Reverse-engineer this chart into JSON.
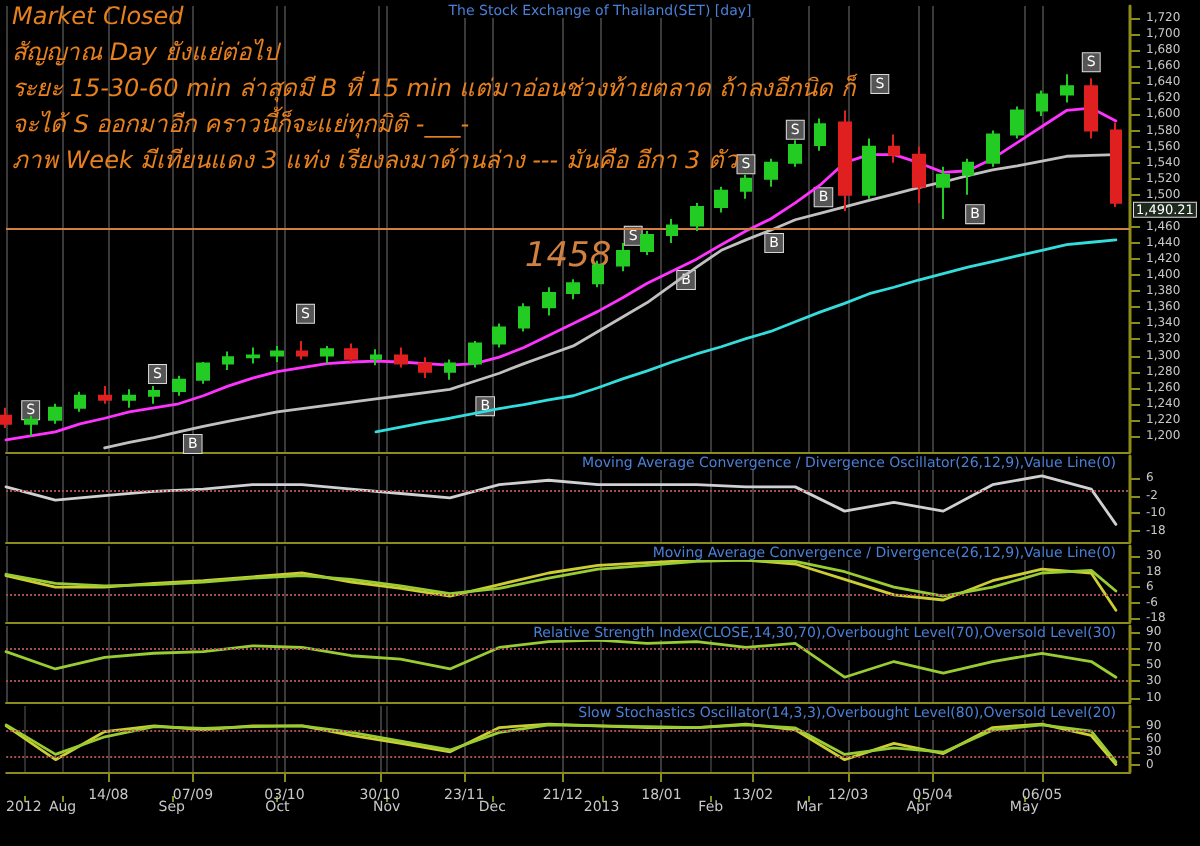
{
  "chart_data": [
    {
      "type": "candlestick",
      "title": "The Stock Exchange of Thailand(SET) [day]",
      "x": [
        "2012-07-16",
        "2012-07-23",
        "2012-07-30",
        "2012-08-06",
        "2012-08-13",
        "2012-08-20",
        "2012-08-27",
        "2012-09-03",
        "2012-09-10",
        "2012-09-17",
        "2012-09-24",
        "2012-10-01",
        "2012-10-08",
        "2012-10-15",
        "2012-10-22",
        "2012-10-29",
        "2012-11-05",
        "2012-11-12",
        "2012-11-19",
        "2012-11-26",
        "2012-12-03",
        "2012-12-10",
        "2012-12-17",
        "2012-12-24",
        "2012-12-31",
        "2013-01-07",
        "2013-01-14",
        "2013-01-21",
        "2013-01-28",
        "2013-02-04",
        "2013-02-11",
        "2013-02-18",
        "2013-02-25",
        "2013-03-04",
        "2013-03-11",
        "2013-03-18",
        "2013-03-25",
        "2013-04-01",
        "2013-04-08",
        "2013-04-15",
        "2013-04-22",
        "2013-04-29",
        "2013-05-06",
        "2013-05-13",
        "2013-05-20",
        "2013-05-27"
      ],
      "ohlc": [
        [
          1225,
          1235,
          1210,
          1215
        ],
        [
          1215,
          1225,
          1200,
          1220
        ],
        [
          1220,
          1240,
          1215,
          1235
        ],
        [
          1235,
          1255,
          1230,
          1250
        ],
        [
          1250,
          1262,
          1240,
          1245
        ],
        [
          1245,
          1258,
          1235,
          1250
        ],
        [
          1250,
          1262,
          1240,
          1256
        ],
        [
          1256,
          1275,
          1250,
          1270
        ],
        [
          1270,
          1292,
          1265,
          1290
        ],
        [
          1290,
          1305,
          1282,
          1298
        ],
        [
          1298,
          1310,
          1290,
          1300
        ],
        [
          1300,
          1312,
          1292,
          1305
        ],
        [
          1305,
          1318,
          1295,
          1300
        ],
        [
          1300,
          1312,
          1290,
          1308
        ],
        [
          1308,
          1315,
          1292,
          1296
        ],
        [
          1296,
          1308,
          1288,
          1300
        ],
        [
          1300,
          1310,
          1285,
          1290
        ],
        [
          1290,
          1298,
          1272,
          1280
        ],
        [
          1280,
          1295,
          1270,
          1290
        ],
        [
          1290,
          1318,
          1285,
          1315
        ],
        [
          1315,
          1340,
          1310,
          1335
        ],
        [
          1335,
          1365,
          1330,
          1360
        ],
        [
          1360,
          1385,
          1350,
          1378
        ],
        [
          1378,
          1395,
          1370,
          1390
        ],
        [
          1390,
          1418,
          1385,
          1412
        ],
        [
          1412,
          1440,
          1405,
          1430
        ],
        [
          1430,
          1455,
          1425,
          1450
        ],
        [
          1450,
          1470,
          1440,
          1462
        ],
        [
          1462,
          1490,
          1455,
          1485
        ],
        [
          1485,
          1510,
          1478,
          1505
        ],
        [
          1505,
          1525,
          1495,
          1520
        ],
        [
          1520,
          1545,
          1510,
          1540
        ],
        [
          1540,
          1568,
          1535,
          1562
        ],
        [
          1562,
          1595,
          1555,
          1588
        ],
        [
          1590,
          1605,
          1480,
          1500
        ],
        [
          1500,
          1570,
          1495,
          1560
        ],
        [
          1560,
          1575,
          1540,
          1550
        ],
        [
          1550,
          1560,
          1490,
          1510
        ],
        [
          1510,
          1535,
          1470,
          1525
        ],
        [
          1525,
          1545,
          1500,
          1540
        ],
        [
          1540,
          1580,
          1535,
          1575
        ],
        [
          1575,
          1610,
          1570,
          1605
        ],
        [
          1605,
          1630,
          1598,
          1625
        ],
        [
          1625,
          1650,
          1615,
          1635
        ],
        [
          1635,
          1645,
          1570,
          1580
        ],
        [
          1580,
          1590,
          1485,
          1490.21
        ]
      ],
      "series": [
        {
          "type": "line",
          "color": "#ff33ff",
          "values": [
            1195,
            1200,
            1205,
            1215,
            1222,
            1230,
            1235,
            1240,
            1250,
            1262,
            1272,
            1280,
            1285,
            1290,
            1292,
            1293,
            1292,
            1290,
            1288,
            1290,
            1298,
            1310,
            1325,
            1340,
            1355,
            1372,
            1390,
            1405,
            1420,
            1438,
            1455,
            1470,
            1490,
            1512,
            1540,
            1550,
            1550,
            1540,
            1528,
            1530,
            1545,
            1565,
            1585,
            1605,
            1608,
            1592
          ]
        },
        {
          "type": "line",
          "color": "#c0c0c0",
          "values": [
            null,
            null,
            null,
            null,
            1185,
            1192,
            1198,
            1205,
            1212,
            1218,
            1224,
            1230,
            1234,
            1238,
            1242,
            1246,
            1250,
            1254,
            1258,
            1268,
            1278,
            1290,
            1301,
            1312,
            1330,
            1348,
            1366,
            1388,
            1410,
            1431,
            1444,
            1456,
            1469,
            1477,
            1485,
            1493,
            1501,
            1509,
            1516,
            1524,
            1531,
            1536,
            1542,
            1548,
            1549,
            1550
          ]
        },
        {
          "type": "line",
          "color": "#33dddd",
          "values": [
            null,
            null,
            null,
            null,
            null,
            null,
            null,
            null,
            null,
            null,
            null,
            null,
            null,
            null,
            null,
            1205,
            1211,
            1217,
            1222,
            1228,
            1234,
            1239,
            1245,
            1250,
            1260,
            1271,
            1281,
            1292,
            1302,
            1311,
            1321,
            1330,
            1342,
            1354,
            1365,
            1377,
            1385,
            1394,
            1402,
            1410,
            1417,
            1424,
            1431,
            1438,
            1441,
            1444
          ]
        }
      ],
      "xlim": [
        "2012-07-16",
        "2013-05-31"
      ],
      "xticks": [
        {
          "value": "2012-07-16",
          "label": null
        },
        {
          "value": "2012-08-01",
          "label": null
        },
        {
          "value": "2012-08-14",
          "label": null
        },
        {
          "value": "2012-09-01",
          "label": null
        },
        {
          "value": "2012-09-07",
          "label": null
        },
        {
          "value": "2012-10-01",
          "label": null
        },
        {
          "value": "2012-10-03",
          "label": null
        },
        {
          "value": "2012-10-30",
          "label": null
        },
        {
          "value": "2012-11-01",
          "label": null
        },
        {
          "value": "2012-11-23",
          "label": null
        },
        {
          "value": "2012-12-01",
          "label": null
        },
        {
          "value": "2012-12-21",
          "label": null
        },
        {
          "value": "2013-01-01",
          "label": null
        },
        {
          "value": "2013-01-18",
          "label": null
        },
        {
          "value": "2013-02-01",
          "label": null
        },
        {
          "value": "2013-02-13",
          "label": null
        },
        {
          "value": "2013-03-01",
          "label": null
        },
        {
          "value": "2013-03-12",
          "label": null
        },
        {
          "value": "2013-04-01",
          "label": null
        },
        {
          "value": "2013-04-05",
          "label": null
        },
        {
          "value": "2013-05-01",
          "label": null
        },
        {
          "value": "2013-05-06",
          "label": null
        }
      ],
      "ylim": [
        1180,
        1735
      ],
      "yticks": [
        {
          "value": 1200,
          "label": "1,200"
        },
        {
          "value": 1220,
          "label": "1,220"
        },
        {
          "value": 1240,
          "label": "1,240"
        },
        {
          "value": 1260,
          "label": "1,260"
        },
        {
          "value": 1280,
          "label": "1,280"
        },
        {
          "value": 1300,
          "label": "1,300"
        },
        {
          "value": 1320,
          "label": "1,320"
        },
        {
          "value": 1340,
          "label": "1,340"
        },
        {
          "value": 1360,
          "label": "1,360"
        },
        {
          "value": 1380,
          "label": "1,380"
        },
        {
          "value": 1400,
          "label": "1,400"
        },
        {
          "value": 1420,
          "label": "1,420"
        },
        {
          "value": 1440,
          "label": "1,440"
        },
        {
          "value": 1460,
          "label": "1,460"
        },
        {
          "value": 1500,
          "label": "1,500"
        },
        {
          "value": 1520,
          "label": "1,520"
        },
        {
          "value": 1540,
          "label": "1,540"
        },
        {
          "value": 1560,
          "label": "1,560"
        },
        {
          "value": 1580,
          "label": "1,580"
        },
        {
          "value": 1600,
          "label": "1,600"
        },
        {
          "value": 1620,
          "label": "1,620"
        },
        {
          "value": 1640,
          "label": "1,640"
        },
        {
          "value": 1660,
          "label": "1,660"
        },
        {
          "value": 1680,
          "label": "1,680"
        },
        {
          "value": 1700,
          "label": "1,700"
        },
        {
          "value": 1720,
          "label": "1,720"
        }
      ],
      "grid": "x",
      "tick_labels": "y",
      "ref_lines": [
        {
          "axis": "y",
          "value": 1458,
          "label": "1458",
          "color": "#d08040",
          "line_style": "solid"
        }
      ],
      "annotations": [
        "Market Closed",
        "สัญญาณ Day ยังแย่ต่อไป",
        "ระยะ 15-30-60 min ล่าสุดมี B ที่ 15 min แต่มาอ่อนช่วงท้ายตลาด ถ้าลงอีกนิด ก็",
        "จะได้ S ออกมาอีก คราวนี้ก็จะแย่ทุกมิติ -___-",
        "ภาพ Week มีเทียนแดง 3 แท่ง เรียงลงมาด้านล่าง --- มันคือ อีกา 3 ตัว",
        {
          "text": "S",
          "x": "2012-07-23",
          "y": 1232
        },
        {
          "text": "S",
          "x": "2012-08-28",
          "y": 1277
        },
        {
          "text": "S",
          "x": "2012-10-09",
          "y": 1352
        },
        {
          "text": "S",
          "x": "2013-01-10",
          "y": 1449
        },
        {
          "text": "S",
          "x": "2013-02-11",
          "y": 1538
        },
        {
          "text": "S",
          "x": "2013-02-25",
          "y": 1581
        },
        {
          "text": "S",
          "x": "2013-03-21",
          "y": 1638
        },
        {
          "text": "S",
          "x": "2013-05-20",
          "y": 1665
        },
        {
          "text": "B",
          "x": "2012-09-07",
          "y": 1190
        },
        {
          "text": "B",
          "x": "2012-11-29",
          "y": 1237
        },
        {
          "text": "B",
          "x": "2013-01-25",
          "y": 1394
        },
        {
          "text": "B",
          "x": "2013-02-19",
          "y": 1440
        },
        {
          "text": "B",
          "x": "2013-03-05",
          "y": 1497
        },
        {
          "text": "B",
          "x": "2013-04-17",
          "y": 1476
        },
        {
          "text": "1,490.21",
          "x": "2013-05-31",
          "y": 1490.21
        }
      ]
    },
    {
      "type": "line",
      "title": "Moving Average Convergence / Divergence Oscillator(26,12,9),Value Line(0)",
      "x": [
        "2012-07-16",
        "2012-07-30",
        "2012-08-13",
        "2012-08-27",
        "2012-09-10",
        "2012-09-24",
        "2012-10-08",
        "2012-10-22",
        "2012-11-05",
        "2012-11-19",
        "2012-12-03",
        "2012-12-17",
        "2012-12-31",
        "2013-01-14",
        "2013-01-28",
        "2013-02-11",
        "2013-02-25",
        "2013-03-11",
        "2013-03-25",
        "2013-04-08",
        "2013-04-22",
        "2013-05-06",
        "2013-05-20",
        "2013-05-27"
      ],
      "series": [
        {
          "color": "#d0d0d0",
          "values": [
            2,
            -4,
            -2,
            0,
            1,
            3,
            3,
            1,
            -1,
            -3,
            3,
            5,
            3,
            3,
            3,
            2,
            2,
            -9,
            -5,
            -9,
            3,
            7,
            1,
            -15
          ]
        }
      ],
      "xlim": [
        "2012-07-16",
        "2013-05-31"
      ],
      "xticks": [
        {
          "value": "2012-07-16",
          "label": null
        },
        {
          "value": "2012-08-01",
          "label": null
        },
        {
          "value": "2012-08-14",
          "label": null
        },
        {
          "value": "2012-09-01",
          "label": null
        },
        {
          "value": "2012-09-07",
          "label": null
        },
        {
          "value": "2012-10-01",
          "label": null
        },
        {
          "value": "2012-10-03",
          "label": null
        },
        {
          "value": "2012-10-30",
          "label": null
        },
        {
          "value": "2012-11-01",
          "label": null
        },
        {
          "value": "2012-11-23",
          "label": null
        },
        {
          "value": "2012-12-01",
          "label": null
        },
        {
          "value": "2012-12-21",
          "label": null
        },
        {
          "value": "2013-01-01",
          "label": null
        },
        {
          "value": "2013-01-18",
          "label": null
        },
        {
          "value": "2013-02-01",
          "label": null
        },
        {
          "value": "2013-02-13",
          "label": null
        },
        {
          "value": "2013-03-01",
          "label": null
        },
        {
          "value": "2013-03-12",
          "label": null
        },
        {
          "value": "2013-04-01",
          "label": null
        },
        {
          "value": "2013-04-05",
          "label": null
        },
        {
          "value": "2013-05-01",
          "label": null
        },
        {
          "value": "2013-05-06",
          "label": null
        }
      ],
      "ylim": [
        -23,
        16
      ],
      "yticks": [
        6,
        -2,
        -10,
        -18
      ],
      "grid": "x",
      "tick_labels": "y",
      "ref_lines": [
        {
          "axis": "y",
          "value": 0,
          "color": "#a05050",
          "line_style": "dotted"
        }
      ]
    },
    {
      "type": "line",
      "title": "Moving Average Convergence / Divergence(26,12,9),Value Line(0)",
      "x": [
        "2012-07-16",
        "2012-07-30",
        "2012-08-13",
        "2012-08-27",
        "2012-09-10",
        "2012-09-24",
        "2012-10-08",
        "2012-10-22",
        "2012-11-05",
        "2012-11-19",
        "2012-12-03",
        "2012-12-17",
        "2012-12-31",
        "2013-01-14",
        "2013-01-28",
        "2013-02-11",
        "2013-02-25",
        "2013-03-11",
        "2013-03-25",
        "2013-04-08",
        "2013-04-22",
        "2013-05-06",
        "2013-05-20",
        "2013-05-27"
      ],
      "series": [
        {
          "color": "#cccc33",
          "values": [
            15,
            6,
            6,
            9,
            11,
            14,
            17,
            10,
            5,
            -1,
            8,
            17,
            23,
            25,
            27,
            27,
            24,
            12,
            0,
            -4,
            11,
            20,
            17,
            -12
          ]
        },
        {
          "color": "#99cc33",
          "values": [
            16,
            9,
            7,
            8,
            10,
            13,
            15,
            12,
            7,
            1,
            5,
            13,
            20,
            23,
            26,
            27,
            26,
            18,
            6,
            -1,
            6,
            17,
            19,
            3
          ]
        }
      ],
      "xlim": [
        "2012-07-16",
        "2013-05-31"
      ],
      "xticks": [
        {
          "value": "2012-07-16",
          "label": null
        },
        {
          "value": "2012-08-01",
          "label": null
        },
        {
          "value": "2012-08-14",
          "label": null
        },
        {
          "value": "2012-09-01",
          "label": null
        },
        {
          "value": "2012-09-07",
          "label": null
        },
        {
          "value": "2012-10-01",
          "label": null
        },
        {
          "value": "2012-10-03",
          "label": null
        },
        {
          "value": "2012-10-30",
          "label": null
        },
        {
          "value": "2012-11-01",
          "label": null
        },
        {
          "value": "2012-11-23",
          "label": null
        },
        {
          "value": "2012-12-01",
          "label": null
        },
        {
          "value": "2012-12-21",
          "label": null
        },
        {
          "value": "2013-01-01",
          "label": null
        },
        {
          "value": "2013-01-18",
          "label": null
        },
        {
          "value": "2013-02-01",
          "label": null
        },
        {
          "value": "2013-02-13",
          "label": null
        },
        {
          "value": "2013-03-01",
          "label": null
        },
        {
          "value": "2013-03-12",
          "label": null
        },
        {
          "value": "2013-04-01",
          "label": null
        },
        {
          "value": "2013-04-05",
          "label": null
        },
        {
          "value": "2013-05-01",
          "label": null
        },
        {
          "value": "2013-05-06",
          "label": null
        }
      ],
      "ylim": [
        -21,
        38
      ],
      "yticks": [
        30,
        18,
        6,
        -6,
        -18
      ],
      "grid": "x",
      "tick_labels": "y",
      "ref_lines": [
        {
          "axis": "y",
          "value": 0,
          "color": "#a05050",
          "line_style": "dotted"
        }
      ]
    },
    {
      "type": "line",
      "title": "Relative Strength Index(CLOSE,14,30,70),Overbought Level(70),Oversold Level(30)",
      "x": [
        "2012-07-16",
        "2012-07-30",
        "2012-08-13",
        "2012-08-27",
        "2012-09-10",
        "2012-09-24",
        "2012-10-08",
        "2012-10-22",
        "2012-11-05",
        "2012-11-19",
        "2012-12-03",
        "2012-12-17",
        "2012-12-31",
        "2013-01-14",
        "2013-01-28",
        "2013-02-11",
        "2013-02-25",
        "2013-03-11",
        "2013-03-25",
        "2013-04-08",
        "2013-04-22",
        "2013-05-06",
        "2013-05-20",
        "2013-05-27"
      ],
      "series": [
        {
          "color": "#99cc33",
          "values": [
            66,
            45,
            59,
            64,
            66,
            73,
            71,
            61,
            57,
            45,
            71,
            78,
            80,
            76,
            78,
            71,
            76,
            35,
            54,
            40,
            54,
            64,
            54,
            35
          ]
        }
      ],
      "xlim": [
        "2012-07-16",
        "2013-05-31"
      ],
      "xticks": [
        {
          "value": "2012-07-16",
          "label": null
        },
        {
          "value": "2012-08-01",
          "label": null
        },
        {
          "value": "2012-08-14",
          "label": null
        },
        {
          "value": "2012-09-01",
          "label": null
        },
        {
          "value": "2012-09-07",
          "label": null
        },
        {
          "value": "2012-10-01",
          "label": null
        },
        {
          "value": "2012-10-03",
          "label": null
        },
        {
          "value": "2012-10-30",
          "label": null
        },
        {
          "value": "2012-11-01",
          "label": null
        },
        {
          "value": "2012-11-23",
          "label": null
        },
        {
          "value": "2012-12-01",
          "label": null
        },
        {
          "value": "2012-12-21",
          "label": null
        },
        {
          "value": "2013-01-01",
          "label": null
        },
        {
          "value": "2013-01-18",
          "label": null
        },
        {
          "value": "2013-02-01",
          "label": null
        },
        {
          "value": "2013-02-13",
          "label": null
        },
        {
          "value": "2013-03-01",
          "label": null
        },
        {
          "value": "2013-03-12",
          "label": null
        },
        {
          "value": "2013-04-01",
          "label": null
        },
        {
          "value": "2013-04-05",
          "label": null
        },
        {
          "value": "2013-05-01",
          "label": null
        },
        {
          "value": "2013-05-06",
          "label": null
        }
      ],
      "ylim": [
        5,
        97
      ],
      "yticks": [
        90,
        70,
        50,
        30,
        10
      ],
      "grid": "x",
      "tick_labels": "y",
      "ref_lines": [
        {
          "axis": "y",
          "value": 70,
          "color": "#a05050",
          "line_style": "dotted"
        },
        {
          "axis": "y",
          "value": 30,
          "color": "#a05050",
          "line_style": "dotted"
        }
      ]
    },
    {
      "type": "line",
      "title": "Slow Stochastics Oscillator(14,3,3),Overbought Level(80),Oversold Level(20)",
      "x": [
        "2012-07-16",
        "2012-07-30",
        "2012-08-13",
        "2012-08-27",
        "2012-09-10",
        "2012-09-24",
        "2012-10-08",
        "2012-10-22",
        "2012-11-05",
        "2012-11-19",
        "2012-12-03",
        "2012-12-17",
        "2012-12-31",
        "2013-01-14",
        "2013-01-28",
        "2013-02-11",
        "2013-02-25",
        "2013-03-11",
        "2013-03-25",
        "2013-04-08",
        "2013-04-22",
        "2013-05-06",
        "2013-05-20",
        "2013-05-27"
      ],
      "series": [
        {
          "color": "#cccc33",
          "values": [
            90,
            13,
            77,
            90,
            81,
            90,
            90,
            68,
            50,
            31,
            86,
            94,
            90,
            86,
            86,
            94,
            81,
            13,
            50,
            27,
            86,
            94,
            68,
            2
          ]
        },
        {
          "color": "#99cc33",
          "values": [
            92,
            25,
            65,
            88,
            84,
            88,
            90,
            75,
            55,
            35,
            75,
            92,
            90,
            88,
            86,
            92,
            85,
            25,
            40,
            30,
            80,
            92,
            78,
            8
          ]
        }
      ],
      "xlim": [
        "2012-07-16",
        "2013-05-31"
      ],
      "xticks": [
        {
          "value": "2012-08-14",
          "label": "14/08"
        },
        {
          "value": "2012-09-07",
          "label": "07/09"
        },
        {
          "value": "2012-10-03",
          "label": "03/10"
        },
        {
          "value": "2012-10-30",
          "label": "30/10"
        },
        {
          "value": "2012-11-23",
          "label": "23/11"
        },
        {
          "value": "2012-12-21",
          "label": "21/12"
        },
        {
          "value": "2013-01-18",
          "label": "18/01"
        },
        {
          "value": "2013-02-13",
          "label": "13/02"
        },
        {
          "value": "2013-03-12",
          "label": "12/03"
        },
        {
          "value": "2013-04-05",
          "label": "05/04"
        },
        {
          "value": "2013-05-06",
          "label": "06/05"
        }
      ],
      "x2lim": [
        "2012-07-16",
        "2013-05-31"
      ],
      "x2ticks": [
        {
          "value": "2012-07-21",
          "label": "2012"
        },
        {
          "value": "2012-08-01",
          "label": "Aug"
        },
        {
          "value": "2012-09-01",
          "label": "Sep"
        },
        {
          "value": "2012-10-01",
          "label": "Oct"
        },
        {
          "value": "2012-11-01",
          "label": "Nov"
        },
        {
          "value": "2012-12-01",
          "label": "Dec"
        },
        {
          "value": "2013-01-01",
          "label": "2013"
        },
        {
          "value": "2013-02-01",
          "label": "Feb"
        },
        {
          "value": "2013-03-01",
          "label": "Mar"
        },
        {
          "value": "2013-04-01",
          "label": "Apr"
        },
        {
          "value": "2013-05-01",
          "label": "May"
        }
      ],
      "ylim": [
        -15,
        135
      ],
      "yticks": [
        90,
        60,
        30,
        0
      ],
      "grid": "x",
      "ref_lines": [
        {
          "axis": "y",
          "value": 80,
          "color": "#a05050",
          "line_style": "dotted"
        },
        {
          "axis": "y",
          "value": 20,
          "color": "#a05050",
          "line_style": "dotted"
        }
      ]
    }
  ]
}
